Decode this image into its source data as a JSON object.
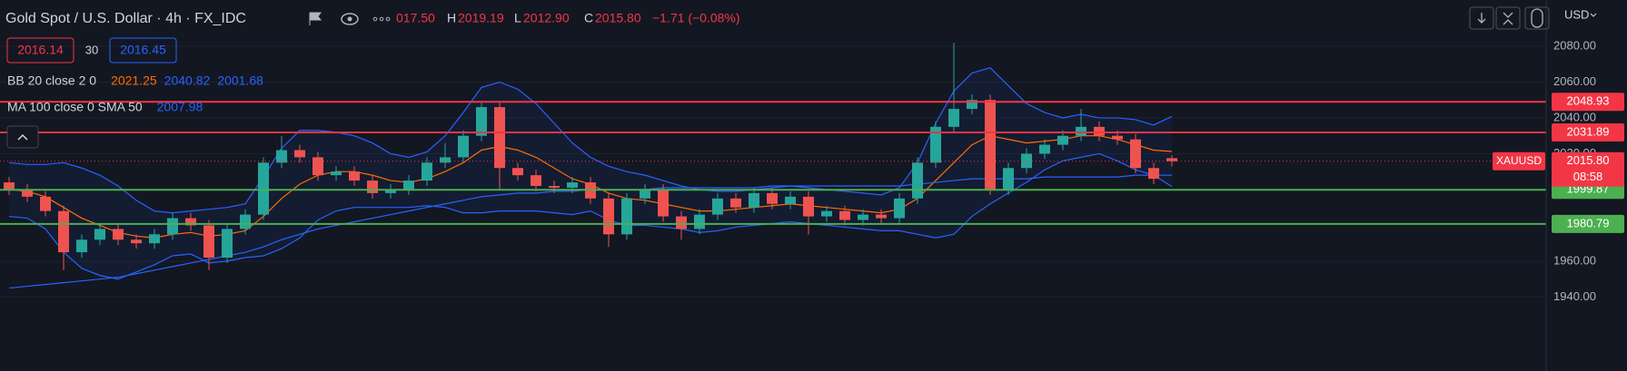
{
  "header": {
    "title": "Gold Spot / U.S. Dollar · 4h · FX_IDC",
    "open": "017.50",
    "high_label": "H",
    "high": "2019.19",
    "low_label": "L",
    "low": "2012.90",
    "close_label": "C",
    "close": "2015.80",
    "change": "−1.71 (−0.08%)",
    "sell": "2016.14",
    "spread": "30",
    "buy": "2016.45",
    "currency": "USD"
  },
  "chart_data": {
    "type": "candlestick",
    "up_color": "#26a69a",
    "down_color": "#ef5350",
    "ylim": [
      1898.7,
      2105.8
    ],
    "yticks": [
      {
        "value": 2080,
        "label": "2080.00"
      },
      {
        "value": 2060,
        "label": "2060.00"
      },
      {
        "value": 2040,
        "label": "2040.00"
      },
      {
        "value": 2020,
        "label": "2020.00"
      },
      {
        "value": 1960,
        "label": "1960.00"
      },
      {
        "value": 1940,
        "label": "1940.00"
      }
    ],
    "grid": true,
    "open": [
      2004,
      2000,
      1996,
      1988,
      1965,
      1972,
      1978,
      1972,
      1970,
      1975,
      1984,
      1980,
      1962,
      1978,
      1986,
      2015,
      2022,
      2018,
      2008,
      2010,
      2005,
      1998,
      2000,
      2005,
      2015,
      2018,
      2030,
      2046,
      2012,
      2008,
      2002,
      2001,
      2004,
      1995,
      1975,
      1995,
      2000,
      1985,
      1978,
      1986,
      1995,
      1990,
      1998,
      1992,
      1996,
      1985,
      1988,
      1983,
      1986,
      1984,
      1995,
      2015,
      2035,
      2045,
      2050,
      2000,
      2012,
      2020,
      2025,
      2030,
      2035,
      2030,
      2028,
      2012,
      2017.5
    ],
    "high": [
      2007,
      2003,
      1999,
      1991,
      1975,
      1981,
      1981,
      1975,
      1978,
      1987,
      1987,
      1983,
      1981,
      1989,
      2018,
      2030,
      2025,
      2021,
      2013,
      2013,
      2008,
      2003,
      2008,
      2018,
      2026,
      2033,
      2049,
      2049,
      2015,
      2011,
      2005,
      2007,
      2007,
      1998,
      1998,
      2003,
      2003,
      1988,
      1989,
      1998,
      1998,
      2001,
      2001,
      1999,
      1999,
      1991,
      1991,
      1989,
      1989,
      1998,
      2018,
      2038,
      2082,
      2053,
      2053,
      2015,
      2023,
      2028,
      2033,
      2045,
      2038,
      2033,
      2031,
      2015,
      2019.19
    ],
    "low": [
      1997,
      1993,
      1985,
      1955,
      1962,
      1969,
      1969,
      1967,
      1967,
      1972,
      1977,
      1955,
      1959,
      1975,
      1983,
      2012,
      2015,
      2005,
      2005,
      2002,
      1995,
      1995,
      1997,
      2002,
      2012,
      2015,
      2027,
      2000,
      2005,
      1999,
      1998,
      1998,
      1992,
      1968,
      1972,
      1992,
      1982,
      1972,
      1975,
      1983,
      1987,
      1987,
      1989,
      1989,
      1975,
      1982,
      1980,
      1980,
      1981,
      1981,
      1992,
      2012,
      2032,
      2042,
      1997,
      1997,
      2009,
      2017,
      2022,
      2027,
      2027,
      2025,
      2009,
      2003,
      2012.9
    ],
    "close": [
      2000,
      1996,
      1988,
      1965,
      1972,
      1978,
      1972,
      1970,
      1975,
      1984,
      1980,
      1962,
      1978,
      1986,
      2015,
      2022,
      2018,
      2008,
      2010,
      2005,
      1998,
      2000,
      2005,
      2015,
      2018,
      2030,
      2046,
      2012,
      2008,
      2002,
      2001,
      2004,
      1995,
      1975,
      1995,
      2000,
      1985,
      1978,
      1986,
      1995,
      1990,
      1998,
      1992,
      1996,
      1985,
      1988,
      1983,
      1986,
      1984,
      1995,
      2015,
      2035,
      2045,
      2050,
      2000,
      2012,
      2020,
      2025,
      2030,
      2035,
      2030,
      2028,
      2012,
      2006,
      2015.8
    ],
    "indicators": [
      {
        "label": "BB 20 close 2 0",
        "fill": "rgba(41,98,255,0.07)",
        "lines": [
          {
            "color": "#ff6d00",
            "values": [
              2000,
              1999,
              1996,
              1990,
              1984,
              1980,
              1976,
              1974,
              1973,
              1975,
              1976,
              1974,
              1975,
              1977,
              1985,
              1995,
              2003,
              2008,
              2010,
              2010,
              2008,
              2005,
              2004,
              2006,
              2010,
              2015,
              2022,
              2024,
              2022,
              2018,
              2012,
              2006,
              2003,
              1998,
              1995,
              1994,
              1992,
              1990,
              1988,
              1988,
              1989,
              1990,
              1991,
              1992,
              1991,
              1990,
              1989,
              1988,
              1987,
              1989,
              1995,
              2005,
              2015,
              2025,
              2030,
              2028,
              2026,
              2027,
              2028,
              2030,
              2030,
              2028,
              2025,
              2022,
              2021.25
            ]
          },
          {
            "color": "#2962ff",
            "values": [
              2015,
              2014,
              2014,
              2015,
              2012,
              2008,
              2002,
              1994,
              1988,
              1987,
              1988,
              1989,
              1990,
              1992,
              2007,
              2023,
              2033,
              2033,
              2032,
              2030,
              2026,
              2020,
              2018,
              2021,
              2030,
              2043,
              2057,
              2060,
              2056,
              2048,
              2037,
              2026,
              2018,
              2013,
              2010,
              2008,
              2005,
              2002,
              2000,
              1999,
              1999,
              2000,
              2001,
              2002,
              2001,
              2000,
              1999,
              1998,
              1997,
              2001,
              2015,
              2037,
              2055,
              2065,
              2068,
              2058,
              2048,
              2043,
              2040,
              2042,
              2040,
              2040,
              2039,
              2036,
              2040.82
            ]
          },
          {
            "color": "#2962ff",
            "values": [
              1985,
              1984,
              1978,
              1965,
              1956,
              1952,
              1950,
              1954,
              1958,
              1963,
              1964,
              1959,
              1960,
              1962,
              1963,
              1967,
              1973,
              1983,
              1988,
              1990,
              1990,
              1990,
              1990,
              1991,
              1990,
              1987,
              1987,
              1988,
              1988,
              1988,
              1987,
              1986,
              1988,
              1983,
              1980,
              1980,
              1979,
              1978,
              1976,
              1977,
              1979,
              1980,
              1981,
              1982,
              1981,
              1980,
              1979,
              1978,
              1977,
              1977,
              1975,
              1973,
              1975,
              1985,
              1992,
              1998,
              2004,
              2011,
              2016,
              2018,
              2020,
              2016,
              2011,
              2008,
              2001.68
            ]
          }
        ]
      },
      {
        "label": "MA 100 close 0 SMA 50",
        "lines": [
          {
            "color": "#2962ff",
            "values": [
              1945,
              1946,
              1947,
              1948,
              1949,
              1950,
              1951,
              1953,
              1955,
              1957,
              1959,
              1961,
              1963,
              1965,
              1968,
              1972,
              1975,
              1978,
              1980,
              1982,
              1984,
              1986,
              1988,
              1990,
              1992,
              1994,
              1996,
              1997,
              1998,
              1998,
              1999,
              1999,
              2000,
              2000,
              2000,
              2000,
              2001,
              2001,
              2001,
              2001,
              2001,
              2001,
              2002,
              2002,
              2002,
              2002,
              2002,
              2002,
              2002,
              2002,
              2003,
              2004,
              2005,
              2006,
              2006,
              2006,
              2006,
              2007,
              2007,
              2007,
              2007,
              2007,
              2008,
              2008,
              2007.98
            ]
          }
        ]
      }
    ],
    "levels": [
      {
        "value": 2048.93,
        "color": "#f23645"
      },
      {
        "value": 2031.89,
        "color": "#f23645"
      },
      {
        "value": 1999.87,
        "color": "#4caf50"
      },
      {
        "value": 1980.79,
        "color": "#4caf50"
      }
    ],
    "last_price": {
      "symbol": "XAUUSD",
      "label": "2015.80",
      "countdown": "08:58",
      "color": "#f23645"
    }
  }
}
